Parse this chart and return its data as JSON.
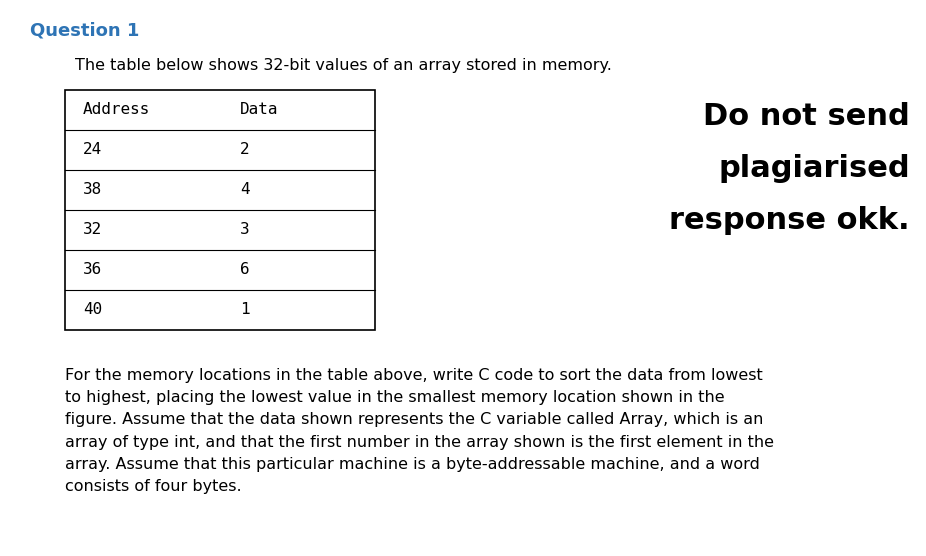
{
  "title": "Question 1",
  "title_color": "#2E74B5",
  "subtitle": "The table below shows 32-bit values of an array stored in memory.",
  "table_headers": [
    "Address",
    "Data"
  ],
  "table_rows": [
    [
      "24",
      "2"
    ],
    [
      "38",
      "4"
    ],
    [
      "32",
      "3"
    ],
    [
      "36",
      "6"
    ],
    [
      "40",
      "1"
    ]
  ],
  "watermark_line1": "Do not send",
  "watermark_line2": "plagiarised",
  "watermark_line3": "response okk.",
  "body_text": "For the memory locations in the table above, write C code to sort the data from lowest\nto highest, placing the lowest value in the smallest memory location shown in the\nfigure. Assume that the data shown represents the C variable called Array, which is an\narray of type int, and that the first number in the array shown is the first element in the\narray. Assume that this particular machine is a byte-addressable machine, and a word\nconsists of four bytes.",
  "bg_color": "#ffffff",
  "text_color": "#000000",
  "title_fontsize": 13,
  "subtitle_fontsize": 11.5,
  "table_fontsize": 11.5,
  "watermark_fontsize": 22,
  "body_fontsize": 11.5
}
